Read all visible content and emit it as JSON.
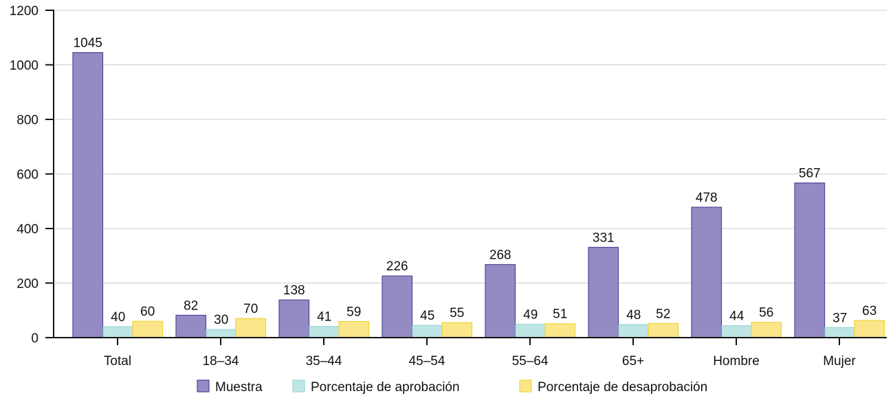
{
  "chart_data": {
    "type": "bar",
    "categories": [
      "Total",
      "18–34",
      "35–44",
      "45–54",
      "55–64",
      "65+",
      "Hombre",
      "Mujer"
    ],
    "series": [
      {
        "name": "Muestra",
        "values": [
          1045,
          82,
          138,
          226,
          268,
          331,
          478,
          567
        ],
        "color": "#958bc4",
        "stroke": "#4f4496"
      },
      {
        "name": "Porcentaje de aprobación",
        "values": [
          40,
          30,
          41,
          45,
          49,
          48,
          44,
          37
        ],
        "color": "#bfe5e5",
        "stroke": "#9ed6d6"
      },
      {
        "name": "Porcentaje de desaprobación",
        "values": [
          60,
          70,
          59,
          55,
          51,
          52,
          56,
          63
        ],
        "color": "#fbe68a",
        "stroke": "#f0d43a"
      }
    ],
    "yticks": [
      "0",
      "200",
      "400",
      "600",
      "800",
      "1000",
      "1200"
    ],
    "ylim": [
      0,
      1200
    ],
    "grid": true,
    "legend": "bottom",
    "title": "",
    "xlabel": "",
    "ylabel": ""
  }
}
